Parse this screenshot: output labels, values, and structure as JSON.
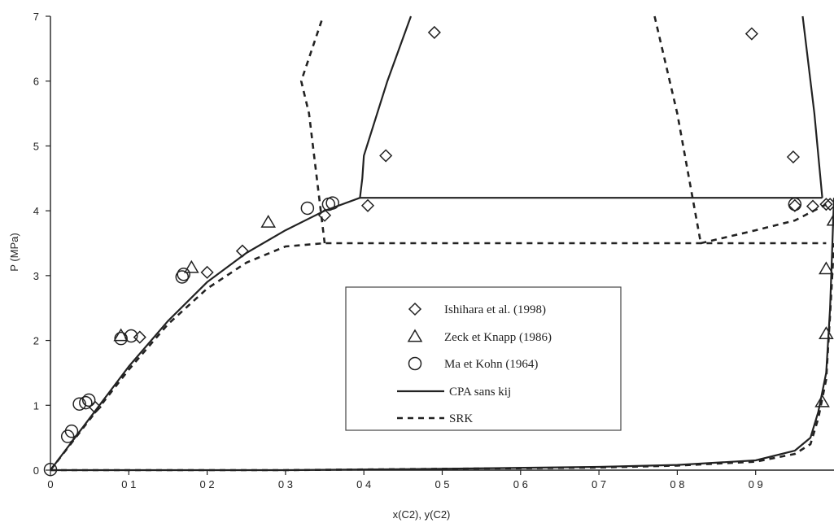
{
  "chart_data": {
    "type": "scatter",
    "xlabel": "x(C2), y(C2)",
    "ylabel": "P (MPa)",
    "xlim": [
      0,
      1
    ],
    "ylim": [
      0,
      7
    ],
    "x_ticks": [
      {
        "value": 0,
        "label": "0"
      },
      {
        "value": 0.1,
        "label": "0 1"
      },
      {
        "value": 0.2,
        "label": "0 2"
      },
      {
        "value": 0.3,
        "label": "0 3"
      },
      {
        "value": 0.4,
        "label": "0 4"
      },
      {
        "value": 0.5,
        "label": "0 5"
      },
      {
        "value": 0.6,
        "label": "0 6"
      },
      {
        "value": 0.7,
        "label": "0 7"
      },
      {
        "value": 0.8,
        "label": "0 8"
      },
      {
        "value": 0.9,
        "label": "0 9"
      }
    ],
    "y_ticks": [
      {
        "value": 0,
        "label": "0"
      },
      {
        "value": 1,
        "label": "1"
      },
      {
        "value": 2,
        "label": "2"
      },
      {
        "value": 3,
        "label": "3"
      },
      {
        "value": 4,
        "label": "4"
      },
      {
        "value": 5,
        "label": "5"
      },
      {
        "value": 6,
        "label": "6"
      },
      {
        "value": 7,
        "label": "7"
      }
    ],
    "grid": false,
    "legend_position": "center-right",
    "series": [
      {
        "name": "Ishihara et al. (1998)",
        "kind": "points",
        "marker": "diamond",
        "x": [
          0.057,
          0.114,
          0.2,
          0.245,
          0.35,
          0.405,
          0.428,
          0.49,
          0.895,
          0.948,
          0.95,
          0.973,
          0.99,
          0.995
        ],
        "y": [
          0.97,
          2.05,
          3.05,
          3.38,
          3.93,
          4.08,
          4.85,
          6.75,
          6.73,
          4.83,
          4.08,
          4.07,
          4.1,
          4.1
        ]
      },
      {
        "name": "Zeck et Knapp (1986)",
        "kind": "points",
        "marker": "triangle",
        "x": [
          0.09,
          0.18,
          0.278,
          0.985,
          0.99,
          0.99,
          1.0
        ],
        "y": [
          2.07,
          3.12,
          3.82,
          1.05,
          2.1,
          3.1,
          3.85
        ]
      },
      {
        "name": "Ma et Kohn (1964)",
        "kind": "points",
        "marker": "circle",
        "x": [
          0.0,
          0.022,
          0.027,
          0.037,
          0.045,
          0.049,
          0.09,
          0.103,
          0.168,
          0.17,
          0.328,
          0.355,
          0.36,
          0.95
        ],
        "y": [
          0.01,
          0.52,
          0.6,
          1.02,
          1.04,
          1.08,
          2.03,
          2.07,
          2.98,
          3.02,
          4.04,
          4.1,
          4.12,
          4.1
        ]
      },
      {
        "name": "CPA sans kij",
        "kind": "line",
        "style": "solid",
        "segments": [
          {
            "x": [
              0.0,
              0.05,
              0.1,
              0.15,
              0.2,
              0.25,
              0.3,
              0.35,
              0.395
            ],
            "y": [
              0.0,
              0.8,
              1.6,
              2.3,
              2.9,
              3.35,
              3.7,
              4.0,
              4.2
            ]
          },
          {
            "x": [
              0.395,
              0.398,
              0.4,
              0.43,
              0.46
            ],
            "y": [
              4.2,
              4.5,
              4.85,
              6.0,
              7.0
            ]
          },
          {
            "x": [
              0.395,
              0.985
            ],
            "y": [
              4.2,
              4.2
            ]
          },
          {
            "x": [
              0.96,
              0.975,
              0.985
            ],
            "y": [
              7.0,
              5.5,
              4.2
            ]
          },
          {
            "x": [
              0.0,
              0.3,
              0.5,
              0.7,
              0.8,
              0.9,
              0.95,
              0.97,
              0.98,
              0.99,
              0.995,
              1.0
            ],
            "y": [
              0.0,
              0.0,
              0.02,
              0.05,
              0.08,
              0.15,
              0.3,
              0.5,
              0.9,
              1.5,
              2.5,
              4.2
            ]
          }
        ]
      },
      {
        "name": "SRK",
        "kind": "line",
        "style": "dashed",
        "segments": [
          {
            "x": [
              0.0,
              0.05,
              0.1,
              0.15,
              0.2,
              0.25,
              0.3,
              0.35,
              0.99
            ],
            "y": [
              0.0,
              0.78,
              1.55,
              2.25,
              2.8,
              3.2,
              3.45,
              3.5,
              3.5
            ]
          },
          {
            "x": [
              0.35,
              0.343,
              0.33,
              0.32,
              0.348
            ],
            "y": [
              3.5,
              4.2,
              5.5,
              6.0,
              7.0
            ]
          },
          {
            "x": [
              0.771,
              0.8,
              0.83
            ],
            "y": [
              7.0,
              5.5,
              3.5
            ]
          },
          {
            "x": [
              0.83,
              0.9,
              0.95,
              0.99
            ],
            "y": [
              3.5,
              3.7,
              3.85,
              4.1
            ]
          },
          {
            "x": [
              0.0,
              0.3,
              0.5,
              0.7,
              0.8,
              0.9,
              0.95,
              0.97,
              0.98,
              0.99,
              0.995,
              1.0
            ],
            "y": [
              0.0,
              0.0,
              0.02,
              0.04,
              0.07,
              0.13,
              0.25,
              0.4,
              0.8,
              1.4,
              2.4,
              3.5
            ]
          }
        ]
      }
    ]
  }
}
